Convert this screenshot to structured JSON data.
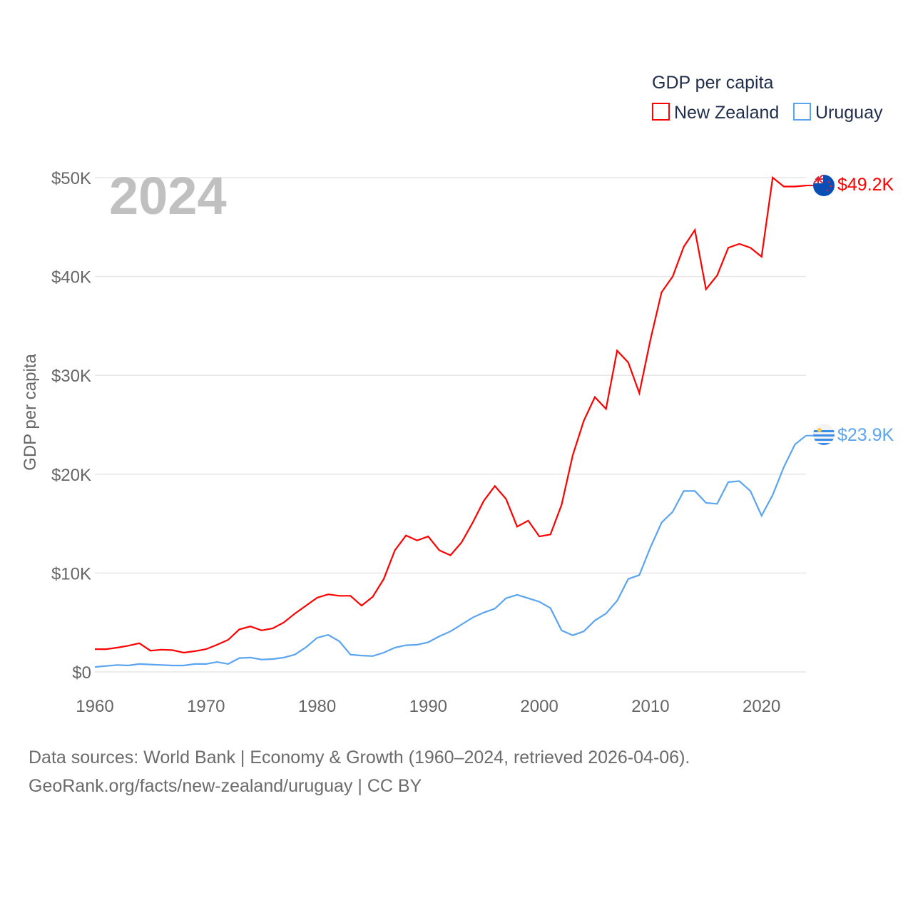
{
  "chart_data": {
    "type": "line",
    "title": "GDP per capita",
    "ylabel": "GDP per capita",
    "xlabel": "",
    "year_watermark": "2024",
    "xlim": [
      1960,
      2024
    ],
    "ylim": [
      0,
      50
    ],
    "y_unit": "thousand USD",
    "grid": true,
    "legend_placement": "top-right",
    "x_ticks": [
      1960,
      1970,
      1980,
      1990,
      2000,
      2010,
      2020
    ],
    "x_tick_labels": [
      "1960",
      "1970",
      "1980",
      "1990",
      "2000",
      "2010",
      "2020"
    ],
    "y_ticks": [
      0,
      10,
      20,
      30,
      40,
      50
    ],
    "y_tick_labels": [
      "$0",
      "$10K",
      "$20K",
      "$30K",
      "$40K",
      "$50K"
    ],
    "x": [
      1960,
      1961,
      1962,
      1963,
      1964,
      1965,
      1966,
      1967,
      1968,
      1969,
      1970,
      1971,
      1972,
      1973,
      1974,
      1975,
      1976,
      1977,
      1978,
      1979,
      1980,
      1981,
      1982,
      1983,
      1984,
      1985,
      1986,
      1987,
      1988,
      1989,
      1990,
      1991,
      1992,
      1993,
      1994,
      1995,
      1996,
      1997,
      1998,
      1999,
      2000,
      2001,
      2002,
      2003,
      2004,
      2005,
      2006,
      2007,
      2008,
      2009,
      2010,
      2011,
      2012,
      2013,
      2014,
      2015,
      2016,
      2017,
      2018,
      2019,
      2020,
      2021,
      2022,
      2023,
      2024
    ],
    "series": [
      {
        "name": "New Zealand",
        "color": "#ff0000",
        "end_label": "$49.2K",
        "flag": "new-zealand-flag",
        "values": [
          2.3,
          2.3,
          2.45,
          2.65,
          2.9,
          2.15,
          2.25,
          2.2,
          1.95,
          2.1,
          2.3,
          2.75,
          3.25,
          4.3,
          4.6,
          4.2,
          4.4,
          5.0,
          5.9,
          6.7,
          7.5,
          7.85,
          7.7,
          7.7,
          6.7,
          7.6,
          9.4,
          12.3,
          13.8,
          13.3,
          13.7,
          12.3,
          11.8,
          13.1,
          15.1,
          17.3,
          18.8,
          17.5,
          14.7,
          15.3,
          13.7,
          13.9,
          16.9,
          21.9,
          25.4,
          27.8,
          26.6,
          32.5,
          31.3,
          28.2,
          33.6,
          38.4,
          40.0,
          43.0,
          44.7,
          38.7,
          40.1,
          42.9,
          43.3,
          42.9,
          42.0,
          50.0,
          49.1,
          49.1,
          49.2
        ]
      },
      {
        "name": "Uruguay",
        "color": "#5ba4ef",
        "end_label": "$23.9K",
        "flag": "uruguay-flag",
        "values": [
          0.5,
          0.6,
          0.7,
          0.65,
          0.8,
          0.75,
          0.7,
          0.65,
          0.65,
          0.8,
          0.8,
          1.0,
          0.8,
          1.4,
          1.45,
          1.25,
          1.3,
          1.45,
          1.75,
          2.5,
          3.45,
          3.75,
          3.1,
          1.75,
          1.65,
          1.6,
          1.95,
          2.45,
          2.7,
          2.75,
          3.0,
          3.6,
          4.1,
          4.8,
          5.5,
          6.0,
          6.4,
          7.45,
          7.8,
          7.45,
          7.1,
          6.45,
          4.2,
          3.7,
          4.1,
          5.2,
          5.9,
          7.2,
          9.4,
          9.8,
          12.6,
          15.1,
          16.2,
          18.3,
          18.3,
          17.1,
          17.0,
          19.2,
          19.3,
          18.3,
          15.8,
          17.9,
          20.7,
          23.0,
          23.9
        ]
      }
    ]
  },
  "footer": {
    "line1": "Data sources: World Bank | Economy & Growth (1960–2024, retrieved 2026-04-06).",
    "line2": "GeoRank.org/facts/new-zealand/uruguay | CC BY"
  }
}
